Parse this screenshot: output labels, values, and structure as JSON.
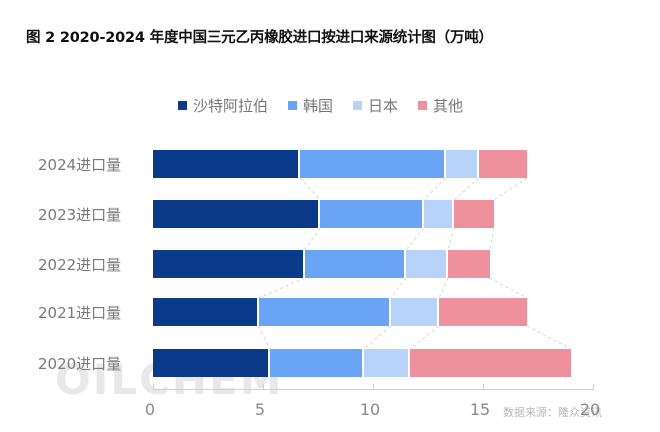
{
  "title": "图 2 2020-2024 年度中国三元乙丙橡胶进口按进口来源统计图（万吨）",
  "legend": [
    {
      "label": "沙特阿拉伯",
      "color": "#0b3a8a"
    },
    {
      "label": "韩国",
      "color": "#6aa5f5"
    },
    {
      "label": "日本",
      "color": "#b8d3fa"
    },
    {
      "label": "其他",
      "color": "#ef919c"
    }
  ],
  "watermark": "OILCHEM",
  "source_note": "数据来源：隆众资讯",
  "chart_data": {
    "type": "bar",
    "orientation": "horizontal",
    "stacked": true,
    "title": "图 2 2020-2024 年度中国三元乙丙橡胶进口按进口来源统计图（万吨）",
    "categories": [
      "2024进口量",
      "2023进口量",
      "2022进口量",
      "2021进口量",
      "2020进口量"
    ],
    "series": [
      {
        "name": "沙特阿拉伯",
        "color": "#0b3a8a",
        "values": [
          6.7,
          7.6,
          6.9,
          4.8,
          5.3
        ]
      },
      {
        "name": "韩国",
        "color": "#6aa5f5",
        "values": [
          6.6,
          4.7,
          4.6,
          6.0,
          4.3
        ]
      },
      {
        "name": "日本",
        "color": "#b8d3fa",
        "values": [
          1.5,
          1.4,
          1.9,
          2.2,
          2.1
        ]
      },
      {
        "name": "其他",
        "color": "#ef919c",
        "values": [
          2.2,
          1.8,
          1.9,
          4.0,
          7.3
        ]
      }
    ],
    "xlabel": "",
    "ylabel": "",
    "xlim": [
      0,
      20
    ],
    "xticks": [
      0,
      5,
      10,
      15,
      20
    ],
    "legend_position": "top",
    "grid": false,
    "series_lines": true
  }
}
